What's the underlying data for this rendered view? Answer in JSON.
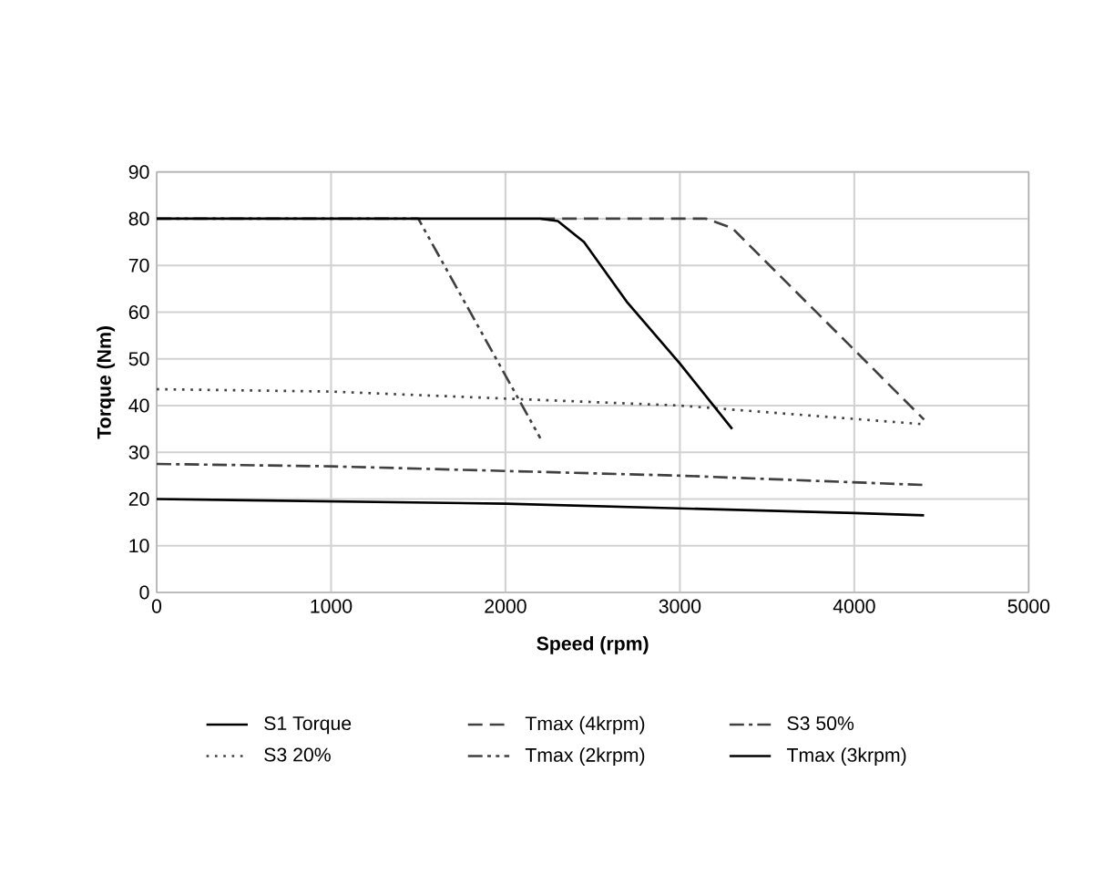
{
  "chart_data": {
    "type": "line",
    "xlabel": "Speed (rpm)",
    "ylabel": "Torque (Nm)",
    "xlim": [
      0,
      5000
    ],
    "ylim": [
      0,
      90
    ],
    "xticks": [
      0,
      1000,
      2000,
      3000,
      4000,
      5000
    ],
    "yticks": [
      0,
      10,
      20,
      30,
      40,
      50,
      60,
      70,
      80,
      90
    ],
    "grid": true,
    "legend": "bottom",
    "marker": "none",
    "series": [
      {
        "name": "S1 Torque",
        "color": "#000000",
        "line_style": "solid",
        "x": [
          0,
          1000,
          2000,
          3000,
          4000,
          4400
        ],
        "values": [
          20,
          19.5,
          19,
          18,
          17,
          16.5
        ]
      },
      {
        "name": "Tmax (4krpm)",
        "color": "#404040",
        "line_style": "dashed",
        "x": [
          2200,
          3150,
          3300,
          4400
        ],
        "values": [
          80,
          80,
          78,
          37
        ]
      },
      {
        "name": "S3 50%",
        "color": "#404040",
        "line_style": "dashdot",
        "x": [
          0,
          1000,
          2000,
          3000,
          4400
        ],
        "values": [
          27.5,
          27,
          26,
          25,
          23
        ]
      },
      {
        "name": "S3 20%",
        "color": "#404040",
        "line_style": "dotted",
        "x": [
          0,
          1000,
          2000,
          3000,
          4400
        ],
        "values": [
          43.5,
          43,
          41.5,
          40,
          36
        ]
      },
      {
        "name": "Tmax (2krpm)",
        "color": "#404040",
        "line_style": "dashdotdot",
        "x": [
          0,
          1500,
          2200
        ],
        "values": [
          80,
          80,
          33
        ]
      },
      {
        "name": "Tmax (3krpm)",
        "color": "#000000",
        "line_style": "solid",
        "x": [
          0,
          2200,
          2300,
          2450,
          2700,
          3000,
          3300
        ],
        "values": [
          80,
          80,
          79.5,
          75,
          62,
          49,
          35
        ]
      }
    ]
  }
}
